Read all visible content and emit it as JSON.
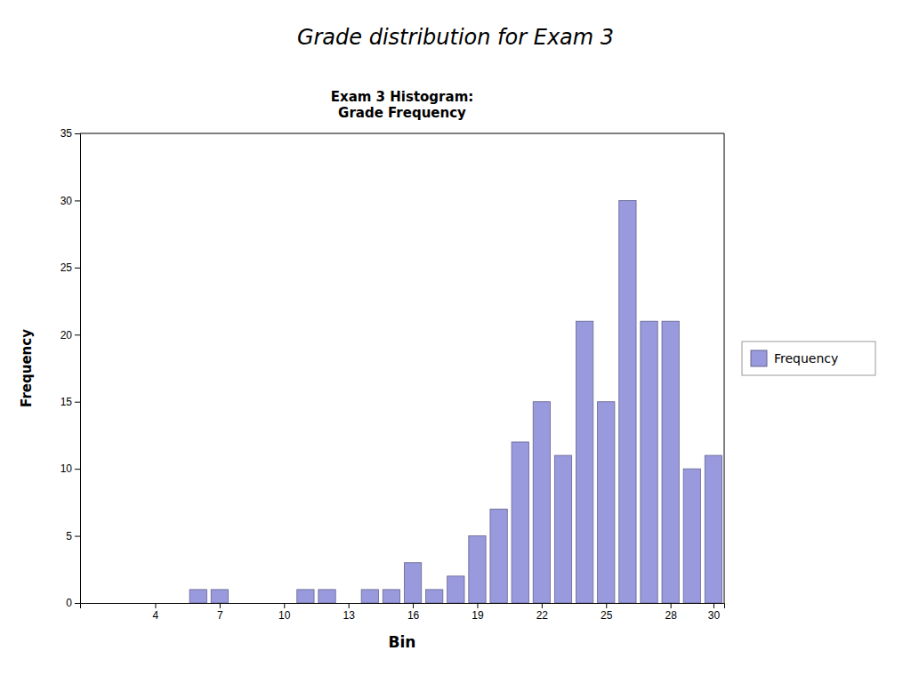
{
  "chart_data": {
    "type": "bar",
    "title": "Grade distribution for Exam 3",
    "subtitle": "Exam 3 Histogram:\nGrade Frequency",
    "x_label": "Bin",
    "y_label": "Frequency",
    "x": [
      1,
      2,
      3,
      4,
      5,
      6,
      7,
      8,
      9,
      10,
      11,
      12,
      13,
      14,
      15,
      16,
      17,
      18,
      19,
      20,
      21,
      22,
      23,
      24,
      25,
      26,
      27,
      28,
      29,
      30
    ],
    "series": [
      {
        "name": "Frequency",
        "color": "#9999dd",
        "values": [
          0,
          0,
          0,
          0,
          0,
          1,
          1,
          0,
          0,
          0,
          1,
          1,
          0,
          1,
          1,
          3,
          1,
          2,
          5,
          7,
          12,
          15,
          11,
          21,
          15,
          30,
          21,
          21,
          10,
          11
        ]
      }
    ],
    "xlim": [
      0.5,
      30.5
    ],
    "xticks": [
      4,
      7,
      10,
      13,
      16,
      19,
      22,
      25,
      28,
      30
    ],
    "ylim": [
      0,
      35
    ],
    "yticks": [
      0,
      5,
      10,
      15,
      20,
      25,
      30,
      35
    ],
    "grid": false,
    "legend": "right"
  }
}
